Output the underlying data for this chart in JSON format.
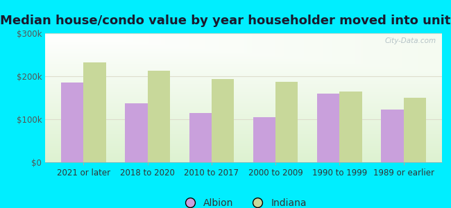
{
  "title": "Median house/condo value by year householder moved into unit",
  "categories": [
    "2021 or later",
    "2018 to 2020",
    "2010 to 2017",
    "2000 to 2009",
    "1990 to 1999",
    "1989 or earlier"
  ],
  "albion_values": [
    185000,
    137000,
    115000,
    105000,
    160000,
    122000
  ],
  "indiana_values": [
    232000,
    213000,
    193000,
    187000,
    165000,
    150000
  ],
  "albion_color": "#c9a0dc",
  "indiana_color": "#c8d89a",
  "background_outer": "#00eeff",
  "ylim": [
    0,
    300000
  ],
  "yticks": [
    0,
    100000,
    200000,
    300000
  ],
  "ytick_labels": [
    "$0",
    "$100k",
    "$200k",
    "$300k"
  ],
  "legend_labels": [
    "Albion",
    "Indiana"
  ],
  "bar_width": 0.35,
  "title_fontsize": 13,
  "tick_fontsize": 8.5,
  "legend_fontsize": 10,
  "title_color": "#1a1a2e",
  "watermark": "City-Data.com"
}
